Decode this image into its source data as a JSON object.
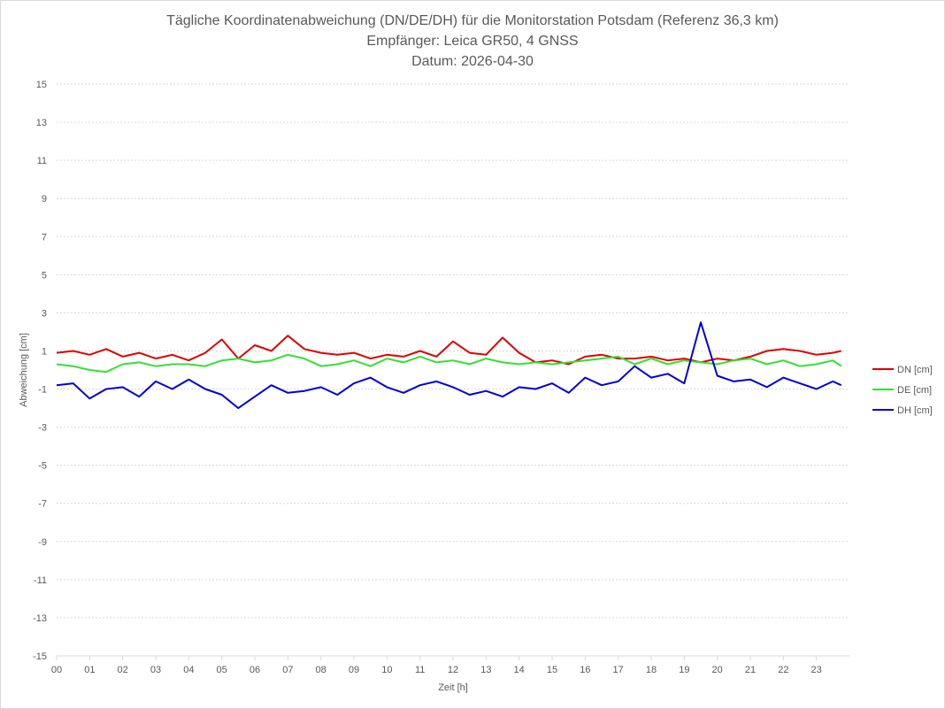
{
  "chart_data": {
    "type": "line",
    "title_lines": [
      "Tägliche Koordinatenabweichung (DN/DE/DH) für die Monitorstation Potsdam (Referenz 36,3 km)",
      "Empfänger: Leica GR50, 4 GNSS",
      "Datum: 2026-04-30"
    ],
    "xlabel": "Zeit [h]",
    "ylabel": "Abweichung [cm]",
    "xlim": [
      0,
      24
    ],
    "ylim": [
      -15,
      15
    ],
    "x_ticks": [
      "00",
      "01",
      "02",
      "03",
      "04",
      "05",
      "06",
      "07",
      "08",
      "09",
      "10",
      "11",
      "12",
      "13",
      "14",
      "15",
      "16",
      "17",
      "18",
      "19",
      "20",
      "21",
      "22",
      "23"
    ],
    "y_ticks": [
      "15",
      "13",
      "11",
      "9",
      "7",
      "5",
      "3",
      "1",
      "-1",
      "-3",
      "-5",
      "-7",
      "-9",
      "-11",
      "-13",
      "-15"
    ],
    "grid": "horizontal dashed",
    "legend_position": "right",
    "x": [
      0.0,
      0.5,
      1.0,
      1.5,
      2.0,
      2.5,
      3.0,
      3.5,
      4.0,
      4.5,
      5.0,
      5.5,
      6.0,
      6.5,
      7.0,
      7.5,
      8.0,
      8.5,
      9.0,
      9.5,
      10.0,
      10.5,
      11.0,
      11.5,
      12.0,
      12.5,
      13.0,
      13.5,
      14.0,
      14.5,
      15.0,
      15.5,
      16.0,
      16.5,
      17.0,
      17.5,
      18.0,
      18.5,
      19.0,
      19.5,
      20.0,
      20.5,
      21.0,
      21.5,
      22.0,
      22.5,
      23.0,
      23.5,
      23.75
    ],
    "series": [
      {
        "name": "DN [cm]",
        "color": "#e00000",
        "values": [
          0.9,
          1.0,
          0.8,
          1.1,
          0.7,
          0.9,
          0.6,
          0.8,
          0.5,
          0.9,
          1.6,
          0.6,
          1.3,
          1.0,
          1.8,
          1.1,
          0.9,
          0.8,
          0.9,
          0.6,
          0.8,
          0.7,
          1.0,
          0.7,
          1.5,
          0.9,
          0.8,
          1.7,
          0.9,
          0.4,
          0.5,
          0.3,
          0.7,
          0.8,
          0.6,
          0.6,
          0.7,
          0.5,
          0.6,
          0.4,
          0.6,
          0.5,
          0.7,
          1.0,
          1.1,
          1.0,
          0.8,
          0.9,
          1.0
        ]
      },
      {
        "name": "DE [cm]",
        "color": "#33e033",
        "values": [
          0.3,
          0.2,
          0.0,
          -0.1,
          0.3,
          0.4,
          0.2,
          0.3,
          0.3,
          0.2,
          0.5,
          0.6,
          0.4,
          0.5,
          0.8,
          0.6,
          0.2,
          0.3,
          0.5,
          0.2,
          0.6,
          0.4,
          0.7,
          0.4,
          0.5,
          0.3,
          0.6,
          0.4,
          0.3,
          0.4,
          0.3,
          0.4,
          0.5,
          0.6,
          0.7,
          0.3,
          0.6,
          0.3,
          0.5,
          0.4,
          0.3,
          0.5,
          0.6,
          0.3,
          0.5,
          0.2,
          0.3,
          0.5,
          0.2
        ]
      },
      {
        "name": "DH [cm]",
        "color": "#0000dd",
        "values": [
          -0.8,
          -0.7,
          -1.5,
          -1.0,
          -0.9,
          -1.4,
          -0.6,
          -1.0,
          -0.5,
          -1.0,
          -1.3,
          -2.0,
          -1.4,
          -0.8,
          -1.2,
          -1.1,
          -0.9,
          -1.3,
          -0.7,
          -0.4,
          -0.9,
          -1.2,
          -0.8,
          -0.6,
          -0.9,
          -1.3,
          -1.1,
          -1.4,
          -0.9,
          -1.0,
          -0.7,
          -1.2,
          -0.4,
          -0.8,
          -0.6,
          0.2,
          -0.4,
          -0.2,
          -0.7,
          2.5,
          -0.3,
          -0.6,
          -0.5,
          -0.9,
          -0.4,
          -0.7,
          -1.0,
          -0.6,
          -0.8
        ]
      }
    ]
  }
}
